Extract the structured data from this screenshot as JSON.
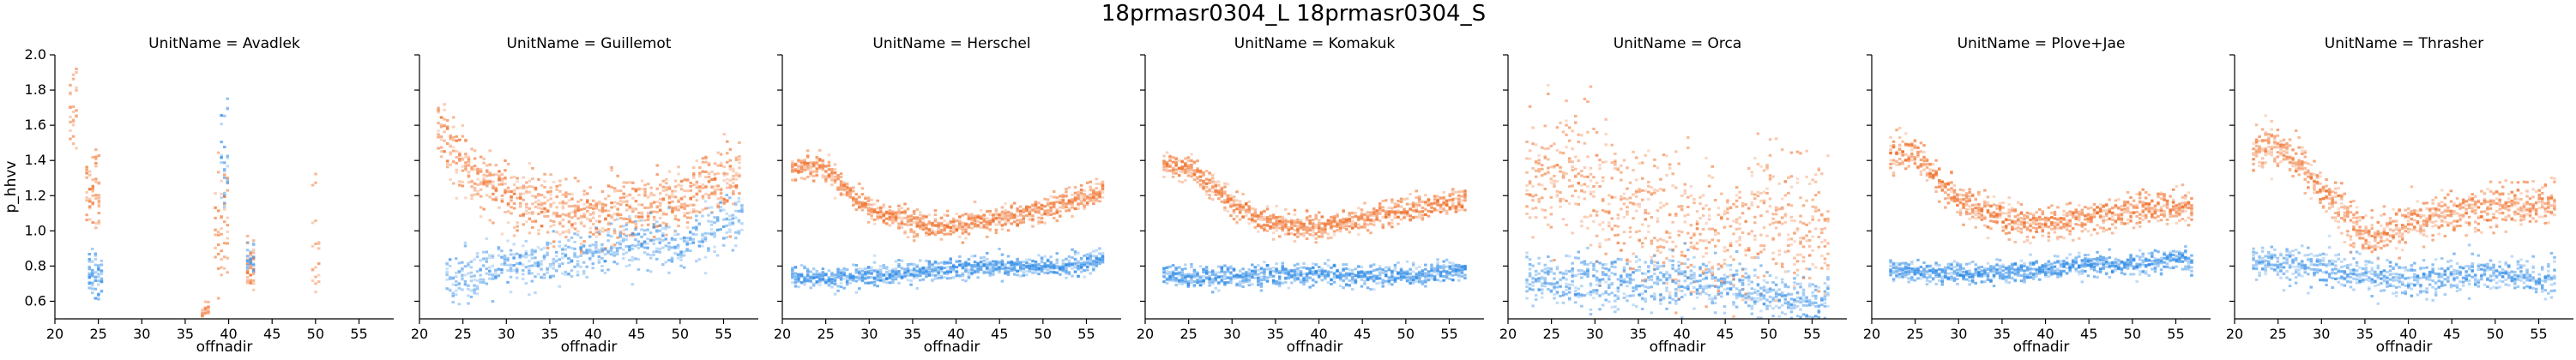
{
  "figure": {
    "title": "18prmasr0304_L 18prmasr0304_S"
  },
  "colors": {
    "L": "#f0702a",
    "S": "#2f8be6"
  },
  "chart_data": {
    "type": "heatmap",
    "title": "18prmasr0304_L 18prmasr0304_S",
    "xlabel": "offnadir",
    "ylabel": "p_hhvv",
    "xlim": [
      20,
      59
    ],
    "ylim": [
      0.5,
      2.0
    ],
    "xticks": [
      20,
      25,
      30,
      35,
      40,
      45,
      50,
      55
    ],
    "yticks": [
      0.6,
      0.8,
      1.0,
      1.2,
      1.4,
      1.6,
      1.8,
      2.0
    ],
    "grid": false,
    "legend": "none",
    "panels": [
      {
        "name": "UnitName = Avadlek",
        "series": [
          {
            "key": "L",
            "clusters": [
              {
                "xmin": 21.6,
                "xmax": 22.6,
                "ymin": 1.35,
                "ymax": 2.0,
                "center": 1.7,
                "density": 0.5
              },
              {
                "xmin": 23.5,
                "xmax": 25.2,
                "ymin": 1.0,
                "ymax": 1.6,
                "center": 1.22,
                "density": 0.7
              },
              {
                "xmin": 38.3,
                "xmax": 40.0,
                "ymin": 0.55,
                "ymax": 1.45,
                "center": 1.0,
                "density": 0.6
              },
              {
                "xmin": 42.0,
                "xmax": 43.0,
                "ymin": 0.65,
                "ymax": 1.0,
                "center": 0.8,
                "density": 0.7
              },
              {
                "xmin": 49.5,
                "xmax": 50.2,
                "ymin": 0.5,
                "ymax": 1.35,
                "center": 0.9,
                "density": 0.4
              },
              {
                "xmin": 36.8,
                "xmax": 37.6,
                "ymin": 0.5,
                "ymax": 0.6,
                "center": 0.55,
                "density": 0.4
              }
            ]
          },
          {
            "key": "S",
            "clusters": [
              {
                "xmin": 23.8,
                "xmax": 25.4,
                "ymin": 0.6,
                "ymax": 0.9,
                "center": 0.72,
                "density": 0.7
              },
              {
                "xmin": 39.0,
                "xmax": 40.0,
                "ymin": 1.05,
                "ymax": 1.8,
                "center": 1.4,
                "density": 0.6
              },
              {
                "xmin": 42.0,
                "xmax": 42.8,
                "ymin": 0.75,
                "ymax": 0.95,
                "center": 0.85,
                "density": 0.5
              }
            ]
          }
        ]
      },
      {
        "name": "UnitName = Guillemot",
        "series": [
          {
            "key": "L",
            "curve": [
              [
                22,
                1.6
              ],
              [
                24,
                1.45
              ],
              [
                26,
                1.33
              ],
              [
                28,
                1.25
              ],
              [
                30,
                1.2
              ],
              [
                33,
                1.15
              ],
              [
                36,
                1.12
              ],
              [
                40,
                1.1
              ],
              [
                44,
                1.13
              ],
              [
                48,
                1.16
              ],
              [
                51,
                1.2
              ],
              [
                54,
                1.26
              ],
              [
                57,
                1.33
              ]
            ],
            "spread": 0.18,
            "density": 0.65
          },
          {
            "key": "S",
            "curve": [
              [
                23,
                0.74
              ],
              [
                27,
                0.76
              ],
              [
                31,
                0.8
              ],
              [
                35,
                0.82
              ],
              [
                39,
                0.86
              ],
              [
                43,
                0.9
              ],
              [
                47,
                0.92
              ],
              [
                50,
                0.9
              ],
              [
                53,
                1.0
              ],
              [
                57,
                1.1
              ]
            ],
            "spread": 0.14,
            "density": 0.5
          }
        ]
      },
      {
        "name": "UnitName = Herschel",
        "series": [
          {
            "key": "L",
            "curve": [
              [
                21,
                1.35
              ],
              [
                24,
                1.38
              ],
              [
                26,
                1.3
              ],
              [
                28,
                1.2
              ],
              [
                30,
                1.12
              ],
              [
                33,
                1.07
              ],
              [
                36,
                1.04
              ],
              [
                39,
                1.02
              ],
              [
                42,
                1.04
              ],
              [
                46,
                1.08
              ],
              [
                50,
                1.12
              ],
              [
                54,
                1.18
              ],
              [
                57,
                1.23
              ]
            ],
            "spread": 0.07,
            "density": 0.7
          },
          {
            "key": "S",
            "curve": [
              [
                21,
                0.74
              ],
              [
                25,
                0.73
              ],
              [
                28,
                0.74
              ],
              [
                32,
                0.75
              ],
              [
                36,
                0.77
              ],
              [
                40,
                0.79
              ],
              [
                44,
                0.8
              ],
              [
                48,
                0.79
              ],
              [
                52,
                0.8
              ],
              [
                55,
                0.81
              ],
              [
                57,
                0.85
              ]
            ],
            "spread": 0.06,
            "density": 0.7
          }
        ]
      },
      {
        "name": "UnitName = Komakuk",
        "series": [
          {
            "key": "L",
            "curve": [
              [
                22,
                1.38
              ],
              [
                25,
                1.35
              ],
              [
                27,
                1.27
              ],
              [
                30,
                1.15
              ],
              [
                33,
                1.07
              ],
              [
                36,
                1.03
              ],
              [
                39,
                1.02
              ],
              [
                42,
                1.04
              ],
              [
                46,
                1.08
              ],
              [
                50,
                1.12
              ],
              [
                54,
                1.15
              ],
              [
                57,
                1.17
              ]
            ],
            "spread": 0.07,
            "density": 0.7
          },
          {
            "key": "S",
            "curve": [
              [
                22,
                0.75
              ],
              [
                26,
                0.74
              ],
              [
                30,
                0.74
              ],
              [
                34,
                0.75
              ],
              [
                38,
                0.75
              ],
              [
                42,
                0.75
              ],
              [
                46,
                0.74
              ],
              [
                50,
                0.75
              ],
              [
                54,
                0.76
              ],
              [
                57,
                0.78
              ]
            ],
            "spread": 0.06,
            "density": 0.7
          }
        ]
      },
      {
        "name": "UnitName = Orca",
        "series": [
          {
            "key": "L",
            "curve": [
              [
                22,
                1.38
              ],
              [
                25,
                1.35
              ],
              [
                28,
                1.3
              ],
              [
                31,
                1.2
              ],
              [
                34,
                1.1
              ],
              [
                37,
                1.05
              ],
              [
                40,
                1.0
              ],
              [
                43,
                0.98
              ],
              [
                46,
                0.95
              ],
              [
                49,
                1.1
              ],
              [
                52,
                1.05
              ],
              [
                55,
                1.0
              ],
              [
                57,
                1.0
              ]
            ],
            "spread": 0.38,
            "density": 0.55
          },
          {
            "key": "S",
            "curve": [
              [
                22,
                0.72
              ],
              [
                26,
                0.72
              ],
              [
                30,
                0.72
              ],
              [
                34,
                0.7
              ],
              [
                38,
                0.72
              ],
              [
                42,
                0.72
              ],
              [
                46,
                0.68
              ],
              [
                49,
                0.65
              ],
              [
                52,
                0.6
              ],
              [
                55,
                0.6
              ],
              [
                57,
                0.6
              ]
            ],
            "spread": 0.15,
            "density": 0.55
          }
        ]
      },
      {
        "name": "UnitName = Plove+Jae",
        "series": [
          {
            "key": "L",
            "curve": [
              [
                22,
                1.43
              ],
              [
                24,
                1.45
              ],
              [
                26,
                1.38
              ],
              [
                28,
                1.25
              ],
              [
                31,
                1.14
              ],
              [
                34,
                1.08
              ],
              [
                37,
                1.05
              ],
              [
                40,
                1.04
              ],
              [
                44,
                1.06
              ],
              [
                48,
                1.1
              ],
              [
                52,
                1.13
              ],
              [
                55,
                1.15
              ],
              [
                57,
                1.12
              ]
            ],
            "spread": 0.09,
            "density": 0.7
          },
          {
            "key": "S",
            "curve": [
              [
                22,
                0.78
              ],
              [
                25,
                0.77
              ],
              [
                28,
                0.76
              ],
              [
                31,
                0.75
              ],
              [
                34,
                0.76
              ],
              [
                37,
                0.77
              ],
              [
                40,
                0.78
              ],
              [
                44,
                0.8
              ],
              [
                48,
                0.8
              ],
              [
                52,
                0.82
              ],
              [
                55,
                0.85
              ],
              [
                57,
                0.82
              ]
            ],
            "spread": 0.06,
            "density": 0.7
          }
        ]
      },
      {
        "name": "UnitName = Thrasher",
        "series": [
          {
            "key": "L",
            "curve": [
              [
                22,
                1.45
              ],
              [
                24,
                1.5
              ],
              [
                26,
                1.45
              ],
              [
                28,
                1.35
              ],
              [
                30,
                1.22
              ],
              [
                32,
                1.12
              ],
              [
                34,
                1.02
              ],
              [
                36,
                0.96
              ],
              [
                38,
                1.0
              ],
              [
                41,
                1.05
              ],
              [
                44,
                1.1
              ],
              [
                48,
                1.12
              ],
              [
                52,
                1.15
              ],
              [
                55,
                1.14
              ],
              [
                57,
                1.18
              ]
            ],
            "spread": 0.12,
            "density": 0.65
          },
          {
            "key": "S",
            "curve": [
              [
                22,
                0.82
              ],
              [
                25,
                0.82
              ],
              [
                28,
                0.8
              ],
              [
                31,
                0.78
              ],
              [
                34,
                0.75
              ],
              [
                37,
                0.74
              ],
              [
                40,
                0.72
              ],
              [
                44,
                0.74
              ],
              [
                48,
                0.76
              ],
              [
                52,
                0.74
              ],
              [
                55,
                0.73
              ],
              [
                57,
                0.72
              ]
            ],
            "spread": 0.1,
            "density": 0.55
          }
        ]
      }
    ]
  }
}
